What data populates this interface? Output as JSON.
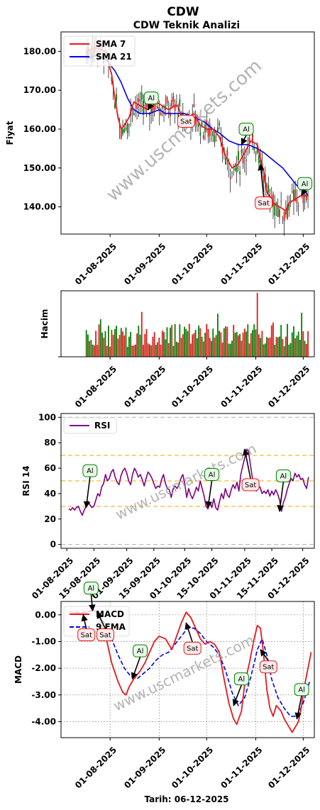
{
  "title": "CDW",
  "subtitle": "CDW Teknik Analizi",
  "footer": "Tarih: 06-12-2025",
  "watermark": "www.uscmarkets.com",
  "colors": {
    "red": "#e41a1c",
    "blue": "#0000ee",
    "green": "#008000",
    "purple": "#800080",
    "orange": "#f2a900",
    "gray": "#b0b0b0"
  },
  "chart_data": [
    {
      "type": "line",
      "name": "price",
      "ylabel": "Fiyat",
      "ylim": [
        133,
        185
      ],
      "yticks": [
        "140.00",
        "150.00",
        "160.00",
        "170.00",
        "180.00"
      ],
      "ytick_values": [
        140,
        150,
        160,
        170,
        180
      ],
      "xticks": [
        "01-08-2025",
        "01-09-2025",
        "01-10-2025",
        "01-11-2025",
        "01-12-2025"
      ],
      "xtick_days": [
        31,
        62,
        92,
        123,
        153
      ],
      "xlim": [
        0,
        160
      ],
      "legend": [
        "SMA 7",
        "SMA 21"
      ],
      "sma7": [
        [
          16,
          180
        ],
        [
          22,
          181
        ],
        [
          28,
          180
        ],
        [
          32,
          174
        ],
        [
          34,
          168
        ],
        [
          36,
          163
        ],
        [
          38,
          160
        ],
        [
          40,
          161
        ],
        [
          43,
          163
        ],
        [
          46,
          167
        ],
        [
          50,
          166
        ],
        [
          55,
          165
        ],
        [
          60,
          167
        ],
        [
          64,
          166
        ],
        [
          68,
          165
        ],
        [
          72,
          166
        ],
        [
          74,
          166
        ],
        [
          76,
          163
        ],
        [
          80,
          163
        ],
        [
          84,
          164
        ],
        [
          88,
          161
        ],
        [
          92,
          160
        ],
        [
          96,
          160
        ],
        [
          100,
          158
        ],
        [
          104,
          153
        ],
        [
          108,
          150
        ],
        [
          112,
          151
        ],
        [
          116,
          154
        ],
        [
          120,
          157
        ],
        [
          124,
          156
        ],
        [
          128,
          149
        ],
        [
          130,
          144
        ],
        [
          134,
          141
        ],
        [
          138,
          140
        ],
        [
          142,
          139
        ],
        [
          144,
          141
        ],
        [
          148,
          142
        ],
        [
          152,
          143
        ],
        [
          156,
          143
        ]
      ],
      "sma21": [
        [
          16,
          178
        ],
        [
          22,
          179
        ],
        [
          28,
          178
        ],
        [
          34,
          175
        ],
        [
          38,
          172
        ],
        [
          42,
          168
        ],
        [
          46,
          165
        ],
        [
          50,
          164
        ],
        [
          56,
          164
        ],
        [
          62,
          165
        ],
        [
          66,
          164
        ],
        [
          72,
          164
        ],
        [
          78,
          164
        ],
        [
          84,
          163
        ],
        [
          90,
          162
        ],
        [
          96,
          160
        ],
        [
          100,
          159
        ],
        [
          106,
          157
        ],
        [
          112,
          156
        ],
        [
          118,
          156
        ],
        [
          124,
          155
        ],
        [
          128,
          154
        ],
        [
          134,
          152
        ],
        [
          140,
          150
        ],
        [
          146,
          147
        ],
        [
          150,
          145
        ],
        [
          154,
          144
        ],
        [
          156,
          143
        ]
      ],
      "annotations": [
        {
          "label": "Al",
          "x": 55,
          "y": 165,
          "tx": 57,
          "ty": 168
        },
        {
          "label": "Sat",
          "x": 80,
          "y": 162,
          "tx": 79,
          "ty": 162
        },
        {
          "label": "Al",
          "x": 114,
          "y": 156,
          "tx": 117,
          "ty": 160
        },
        {
          "label": "Sat",
          "x": 126,
          "y": 151,
          "tx": 128,
          "ty": 141
        },
        {
          "label": "Al",
          "x": 152,
          "y": 143,
          "tx": 154,
          "ty": 146
        }
      ]
    },
    {
      "type": "bar",
      "name": "volume",
      "ylabel": "Hacim",
      "xticks": [
        "01-08-2025",
        "01-09-2025",
        "01-10-2025",
        "01-11-2025",
        "01-12-2025"
      ],
      "xtick_days": [
        31,
        62,
        92,
        123,
        153
      ],
      "xlim": [
        0,
        160
      ]
    },
    {
      "type": "line",
      "name": "rsi",
      "ylabel": "RSI 14",
      "ylim": [
        -3,
        103
      ],
      "yticks": [
        "0",
        "20",
        "40",
        "60",
        "80",
        "100"
      ],
      "ytick_values": [
        0,
        20,
        40,
        60,
        80,
        100
      ],
      "xticks": [
        "01-08-2025",
        "15-08-2025",
        "01-09-2025",
        "15-09-2025",
        "01-10-2025",
        "15-10-2025",
        "01-11-2025",
        "15-11-2025",
        "01-12-2025"
      ],
      "xtick_days": [
        31,
        45,
        62,
        76,
        92,
        106,
        123,
        137,
        153
      ],
      "xlim": [
        28,
        159
      ],
      "legend": [
        "RSI"
      ],
      "hlines": [
        0,
        30,
        50,
        70,
        100
      ],
      "rsi": [
        [
          32,
          28
        ],
        [
          33,
          27
        ],
        [
          34,
          29
        ],
        [
          35,
          27
        ],
        [
          36,
          29
        ],
        [
          37,
          30
        ],
        [
          38,
          26
        ],
        [
          39,
          23
        ],
        [
          40,
          27
        ],
        [
          41,
          30
        ],
        [
          42,
          34
        ],
        [
          43,
          31
        ],
        [
          44,
          29
        ],
        [
          45,
          30
        ],
        [
          46,
          35
        ],
        [
          47,
          40
        ],
        [
          48,
          38
        ],
        [
          49,
          45
        ],
        [
          50,
          48
        ],
        [
          51,
          55
        ],
        [
          52,
          50
        ],
        [
          53,
          52
        ],
        [
          54,
          57
        ],
        [
          55,
          59
        ],
        [
          56,
          53
        ],
        [
          57,
          49
        ],
        [
          58,
          47
        ],
        [
          59,
          54
        ],
        [
          60,
          58
        ],
        [
          61,
          60
        ],
        [
          62,
          56
        ],
        [
          63,
          50
        ],
        [
          64,
          47
        ],
        [
          65,
          55
        ],
        [
          66,
          60
        ],
        [
          67,
          57
        ],
        [
          68,
          53
        ],
        [
          69,
          55
        ],
        [
          70,
          51
        ],
        [
          71,
          46
        ],
        [
          72,
          52
        ],
        [
          73,
          57
        ],
        [
          74,
          55
        ],
        [
          75,
          52
        ],
        [
          76,
          48
        ],
        [
          77,
          44
        ],
        [
          78,
          46
        ],
        [
          79,
          45
        ],
        [
          80,
          51
        ],
        [
          81,
          55
        ],
        [
          82,
          48
        ],
        [
          83,
          44
        ],
        [
          84,
          43
        ],
        [
          85,
          37
        ],
        [
          86,
          44
        ],
        [
          87,
          46
        ],
        [
          88,
          44
        ],
        [
          89,
          47
        ],
        [
          90,
          52
        ],
        [
          91,
          55
        ],
        [
          92,
          48
        ],
        [
          93,
          37
        ],
        [
          94,
          44
        ],
        [
          95,
          39
        ],
        [
          96,
          36
        ],
        [
          97,
          40
        ],
        [
          98,
          45
        ],
        [
          99,
          42
        ],
        [
          100,
          50
        ],
        [
          101,
          44
        ],
        [
          102,
          38
        ],
        [
          103,
          30
        ],
        [
          104,
          28
        ],
        [
          105,
          33
        ],
        [
          106,
          29
        ],
        [
          107,
          36
        ],
        [
          108,
          29
        ],
        [
          109,
          27
        ],
        [
          110,
          34
        ],
        [
          111,
          40
        ],
        [
          112,
          36
        ],
        [
          113,
          44
        ],
        [
          114,
          39
        ],
        [
          115,
          37
        ],
        [
          116,
          43
        ],
        [
          117,
          47
        ],
        [
          118,
          44
        ],
        [
          119,
          49
        ],
        [
          120,
          42
        ],
        [
          121,
          55
        ],
        [
          122,
          62
        ],
        [
          123,
          68
        ],
        [
          124,
          75
        ],
        [
          125,
          73
        ],
        [
          126,
          62
        ],
        [
          127,
          52
        ],
        [
          128,
          44
        ],
        [
          129,
          42
        ],
        [
          130,
          46
        ],
        [
          131,
          45
        ],
        [
          132,
          40
        ],
        [
          133,
          42
        ],
        [
          134,
          40
        ],
        [
          135,
          43
        ],
        [
          136,
          38
        ],
        [
          137,
          42
        ],
        [
          138,
          39
        ],
        [
          139,
          43
        ],
        [
          140,
          40
        ],
        [
          141,
          35
        ],
        [
          142,
          26
        ],
        [
          143,
          33
        ],
        [
          144,
          37
        ],
        [
          145,
          43
        ],
        [
          146,
          48
        ],
        [
          147,
          52
        ],
        [
          148,
          50
        ],
        [
          149,
          56
        ],
        [
          150,
          53
        ],
        [
          151,
          55
        ],
        [
          152,
          51
        ],
        [
          153,
          52
        ],
        [
          154,
          47
        ],
        [
          155,
          44
        ],
        [
          156,
          53
        ]
      ],
      "annotations": [
        {
          "label": "Al",
          "x": 41,
          "y": 29,
          "tx": 43,
          "ty": 58
        },
        {
          "label": "Al",
          "x": 104,
          "y": 29,
          "tx": 106,
          "ty": 55
        },
        {
          "label": "Sat",
          "x": 123,
          "y": 75,
          "tx": 126,
          "ty": 47
        },
        {
          "label": "Al",
          "x": 141,
          "y": 26,
          "tx": 143,
          "ty": 54
        }
      ]
    },
    {
      "type": "line",
      "name": "macd",
      "ylabel": "MACD",
      "ylim": [
        -4.6,
        0.5
      ],
      "yticks": [
        "-4.00",
        "-3.00",
        "-2.00",
        "-1.00",
        "0.00"
      ],
      "ytick_values": [
        -4,
        -3,
        -2,
        -1,
        0
      ],
      "xticks": [
        "01-08-2025",
        "01-09-2025",
        "01-10-2025",
        "01-11-2025",
        "01-12-2025"
      ],
      "xtick_days": [
        31,
        62,
        92,
        123,
        153
      ],
      "xlim": [
        0,
        160
      ],
      "legend": [
        "MACD",
        "9 EMA"
      ],
      "macd": [
        [
          5,
          0.1
        ],
        [
          9,
          0.08
        ],
        [
          13,
          0.05
        ],
        [
          17,
          0.1
        ],
        [
          20,
          0.2
        ],
        [
          23,
          0.1
        ],
        [
          26,
          -0.4
        ],
        [
          29,
          -1.0
        ],
        [
          32,
          -1.8
        ],
        [
          36,
          -2.5
        ],
        [
          39,
          -2.9
        ],
        [
          41,
          -3.0
        ],
        [
          43,
          -2.7
        ],
        [
          46,
          -2.4
        ],
        [
          50,
          -2.1
        ],
        [
          53,
          -1.8
        ],
        [
          56,
          -1.4
        ],
        [
          59,
          -1.0
        ],
        [
          62,
          -0.8
        ],
        [
          66,
          -0.9
        ],
        [
          70,
          -1.3
        ],
        [
          73,
          -0.8
        ],
        [
          76,
          -0.3
        ],
        [
          79,
          0.1
        ],
        [
          82,
          -0.1
        ],
        [
          85,
          -0.5
        ],
        [
          88,
          -0.9
        ],
        [
          91,
          -1.1
        ],
        [
          94,
          -1.0
        ],
        [
          97,
          -1.1
        ],
        [
          100,
          -1.4
        ],
        [
          103,
          -2.4
        ],
        [
          106,
          -3.3
        ],
        [
          109,
          -3.9
        ],
        [
          111,
          -4.1
        ],
        [
          114,
          -3.6
        ],
        [
          116,
          -2.6
        ],
        [
          119,
          -1.8
        ],
        [
          122,
          -0.9
        ],
        [
          124,
          -0.4
        ],
        [
          126,
          -0.5
        ],
        [
          128,
          -1.5
        ],
        [
          130,
          -2.8
        ],
        [
          132,
          -3.5
        ],
        [
          134,
          -3.8
        ],
        [
          136,
          -3.4
        ],
        [
          139,
          -3.6
        ],
        [
          141,
          -3.9
        ],
        [
          143,
          -4.1
        ],
        [
          146,
          -4.4
        ],
        [
          148,
          -4.2
        ],
        [
          150,
          -4.0
        ],
        [
          152,
          -3.4
        ],
        [
          154,
          -2.6
        ],
        [
          156,
          -2.0
        ],
        [
          158,
          -1.4
        ]
      ],
      "signal": [
        [
          5,
          0.1
        ],
        [
          10,
          0.1
        ],
        [
          15,
          0.1
        ],
        [
          20,
          0.15
        ],
        [
          24,
          0.05
        ],
        [
          28,
          -0.4
        ],
        [
          32,
          -0.9
        ],
        [
          36,
          -1.5
        ],
        [
          40,
          -2.0
        ],
        [
          44,
          -2.3
        ],
        [
          48,
          -2.4
        ],
        [
          52,
          -2.2
        ],
        [
          56,
          -2.0
        ],
        [
          60,
          -1.7
        ],
        [
          64,
          -1.5
        ],
        [
          68,
          -1.4
        ],
        [
          72,
          -1.1
        ],
        [
          76,
          -0.8
        ],
        [
          80,
          -0.5
        ],
        [
          84,
          -0.5
        ],
        [
          88,
          -0.7
        ],
        [
          92,
          -1.0
        ],
        [
          96,
          -1.2
        ],
        [
          100,
          -1.5
        ],
        [
          104,
          -2.1
        ],
        [
          108,
          -2.9
        ],
        [
          112,
          -3.4
        ],
        [
          116,
          -3.1
        ],
        [
          120,
          -2.3
        ],
        [
          124,
          -1.3
        ],
        [
          127,
          -0.9
        ],
        [
          130,
          -1.5
        ],
        [
          133,
          -2.4
        ],
        [
          137,
          -3.1
        ],
        [
          141,
          -3.5
        ],
        [
          145,
          -3.8
        ],
        [
          149,
          -3.8
        ],
        [
          153,
          -3.3
        ],
        [
          157,
          -2.5
        ]
      ],
      "annotations": [
        {
          "label": "Al",
          "x": 20,
          "y": 0.15,
          "tx": 19,
          "ty": 1.0
        },
        {
          "label": "Sat",
          "x": 14,
          "y": 0.0,
          "tx": 16,
          "ty": -0.75
        },
        {
          "label": "Sat",
          "x": 23,
          "y": 0.1,
          "tx": 28,
          "ty": -0.75
        },
        {
          "label": "Al",
          "x": 45,
          "y": -2.4,
          "tx": 50,
          "ty": -1.35
        },
        {
          "label": "Sat",
          "x": 79,
          "y": -0.3,
          "tx": 83,
          "ty": -1.25
        },
        {
          "label": "Al",
          "x": 109,
          "y": -3.4,
          "tx": 114,
          "ty": -2.4
        },
        {
          "label": "Sat",
          "x": 126,
          "y": -1.3,
          "tx": 131,
          "ty": -1.95
        },
        {
          "label": "Al",
          "x": 149,
          "y": -3.9,
          "tx": 152,
          "ty": -2.8
        }
      ]
    }
  ]
}
